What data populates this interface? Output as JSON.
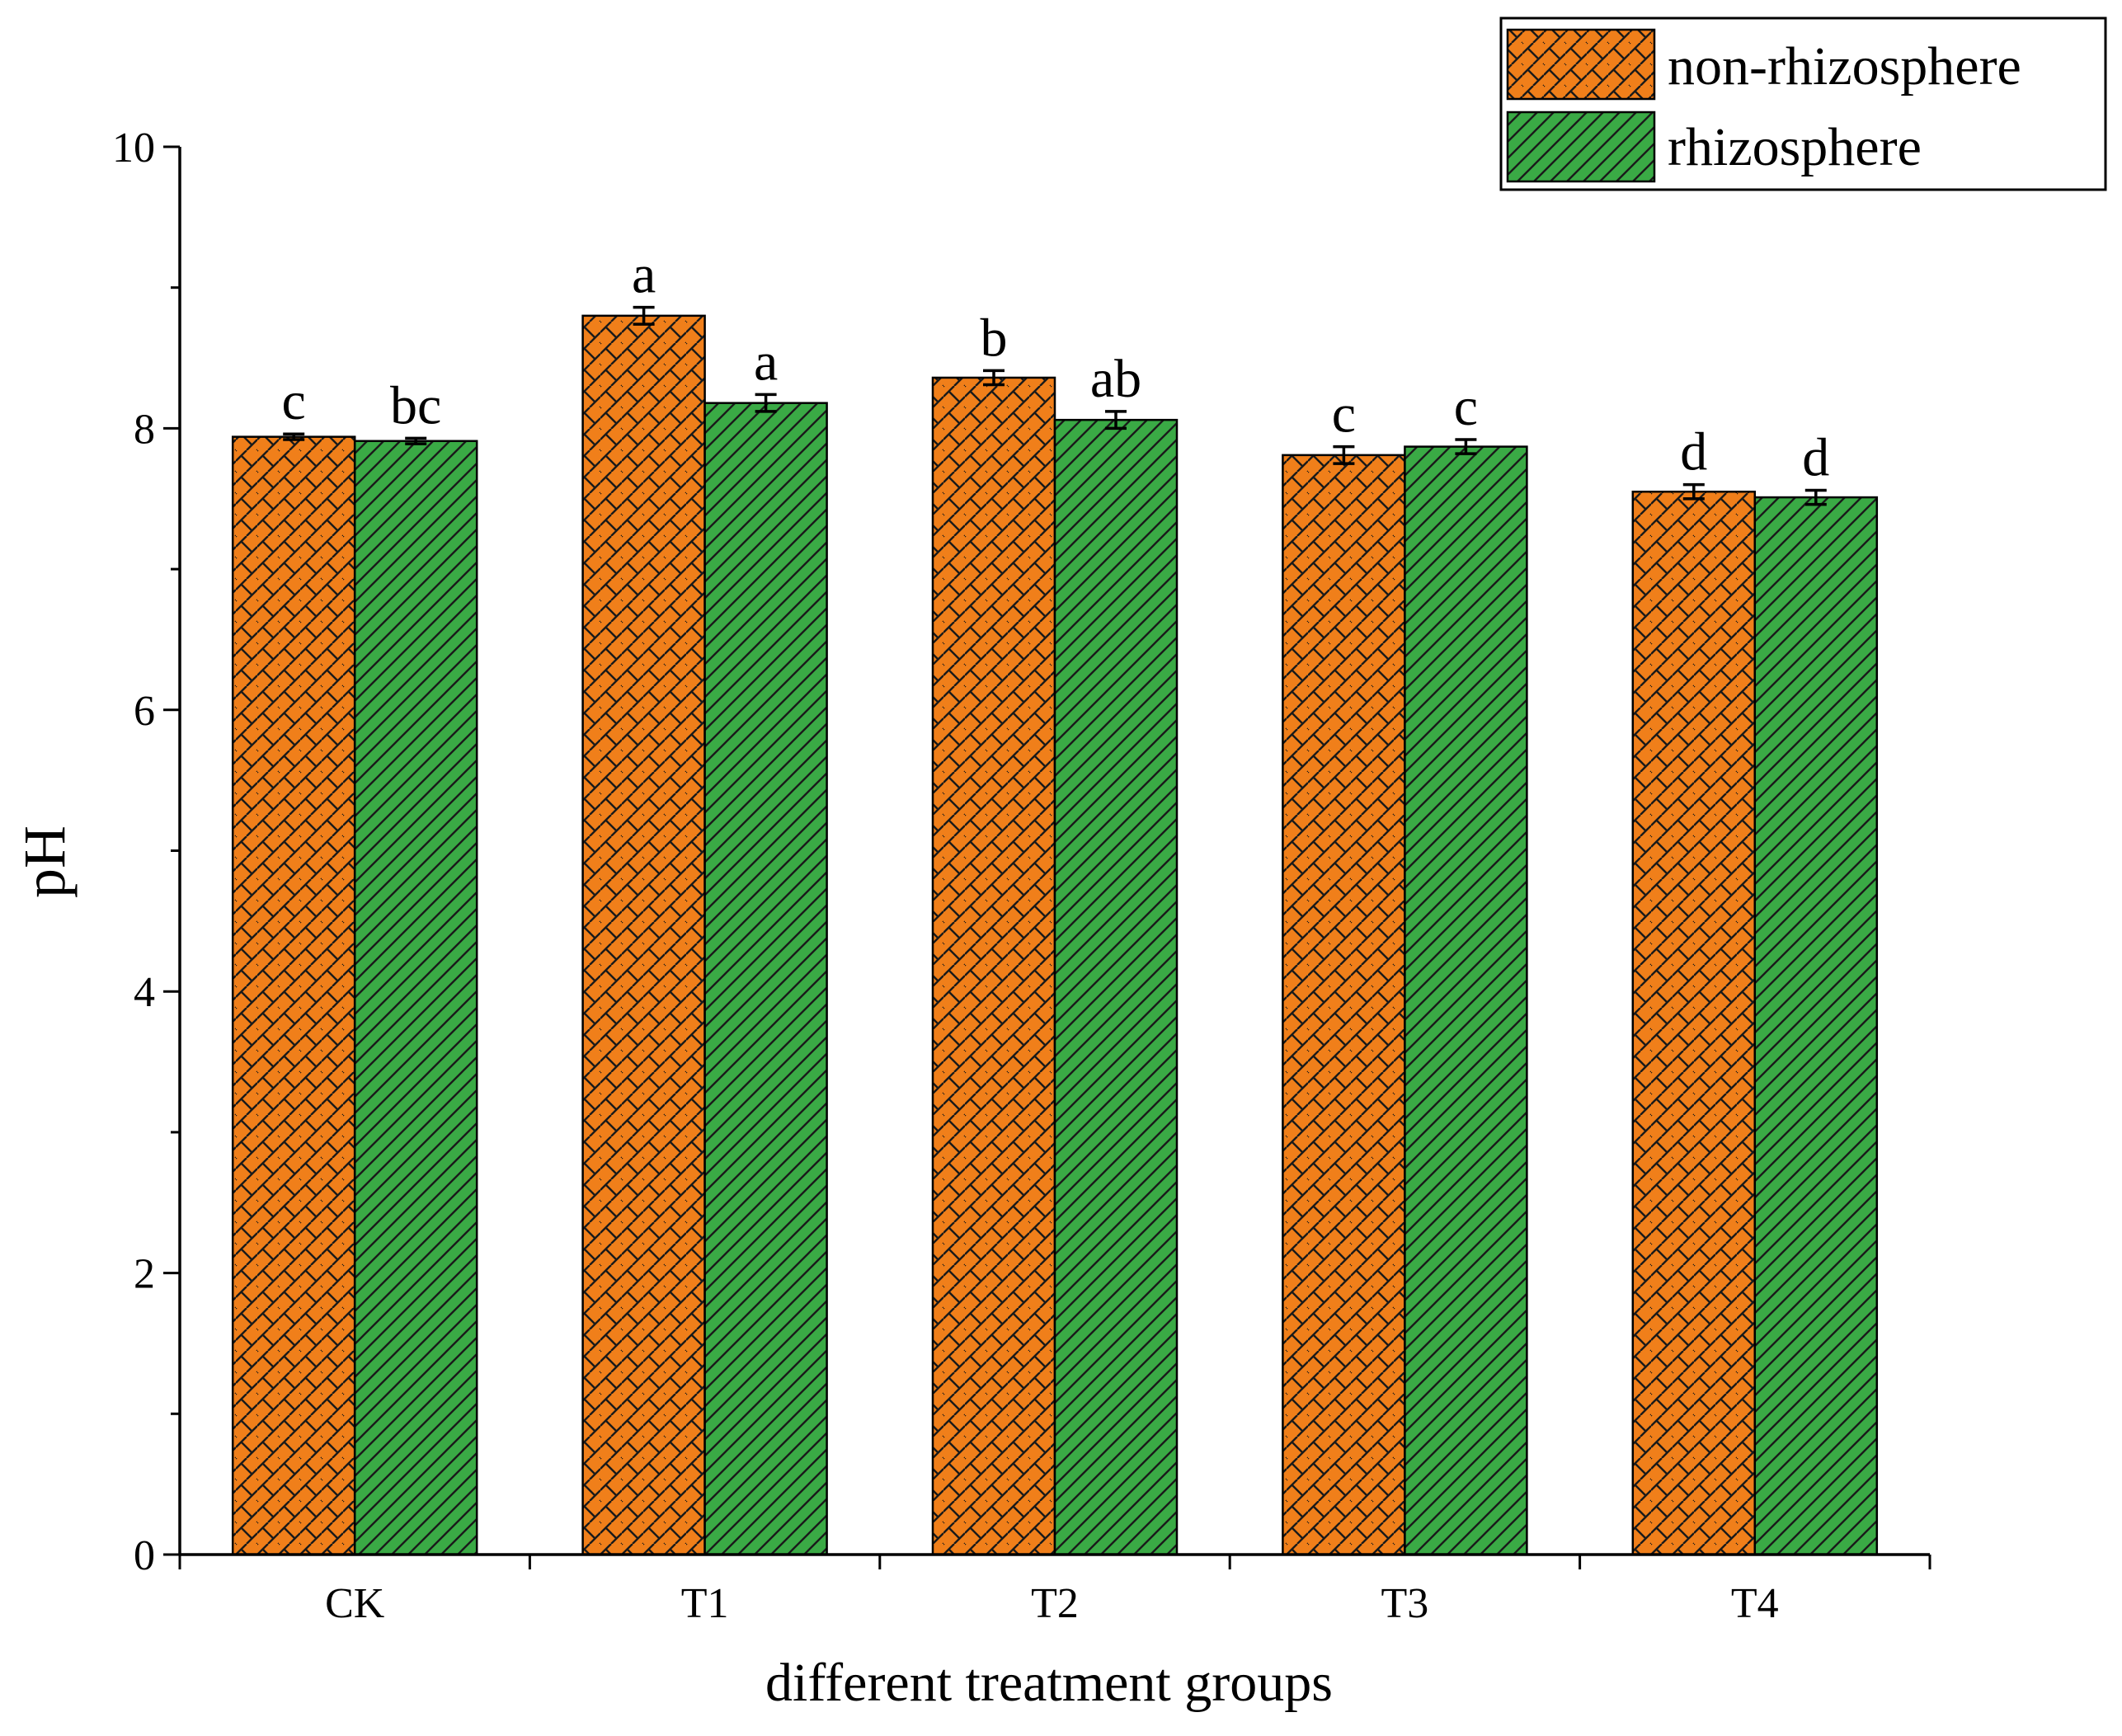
{
  "chart_data": {
    "type": "bar",
    "title": "",
    "xlabel": "different treatment groups",
    "ylabel": "pH",
    "ylim": [
      0,
      10
    ],
    "yticks": [
      0,
      2,
      4,
      6,
      8,
      10
    ],
    "categories": [
      "CK",
      "T1",
      "T2",
      "T3",
      "T4"
    ],
    "legend_position": "top-right",
    "series": [
      {
        "name": "non-rhizosphere",
        "color": "#F07F1A",
        "pattern": "brick",
        "values": [
          7.94,
          8.8,
          8.36,
          7.81,
          7.55
        ],
        "errors": [
          0.02,
          0.06,
          0.05,
          0.06,
          0.05
        ],
        "significance": [
          "c",
          "a",
          "b",
          "c",
          "d"
        ]
      },
      {
        "name": "rhizosphere",
        "color": "#3AAA45",
        "pattern": "diagonal",
        "values": [
          7.91,
          8.18,
          8.06,
          7.87,
          7.51
        ],
        "errors": [
          0.02,
          0.06,
          0.06,
          0.05,
          0.05
        ],
        "significance": [
          "bc",
          "a",
          "ab",
          "c",
          "d"
        ]
      }
    ]
  }
}
